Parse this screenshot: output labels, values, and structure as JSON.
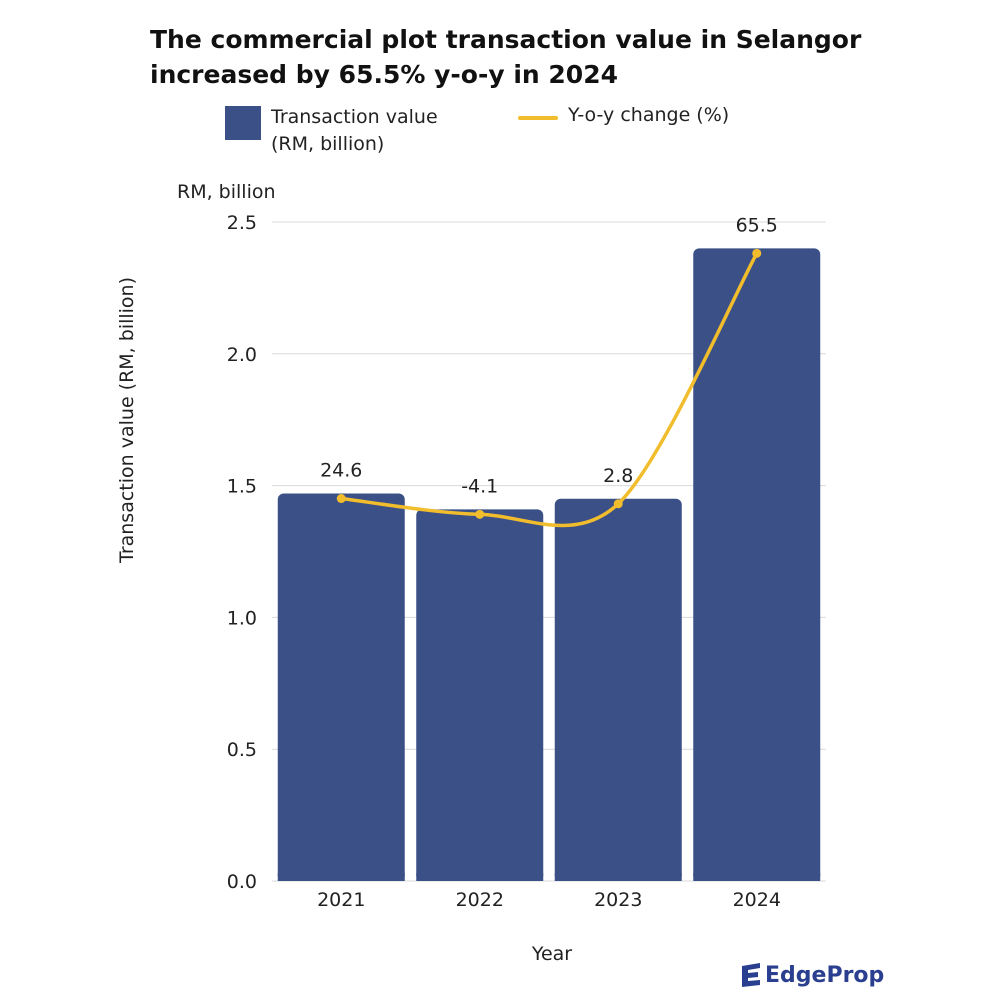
{
  "title_line1": "The  commercial plot transaction value in Selangor",
  "title_line2": "increased by 65.5% y-o-y in 2024",
  "legend": {
    "bar_label": "Transaction value\n(RM, billion)",
    "line_label": "Y-o-y change (%)"
  },
  "brand": "EdgeProp",
  "colors": {
    "bar": "#3b5087",
    "line": "#f2bd2c",
    "grid": "#d9d9d9",
    "brand": "#2a3f8f"
  },
  "chart_data": {
    "type": "bar",
    "unit_label": "RM, billion",
    "ylabel": "Transaction value (RM, billion)",
    "xlabel": "Year",
    "ylim": [
      0,
      2.5
    ],
    "yticks": [
      0.0,
      0.5,
      1.0,
      1.5,
      2.0,
      2.5
    ],
    "ytick_labels": [
      "0.0",
      "0.5",
      "1.0",
      "1.5",
      "2.0",
      "2.5"
    ],
    "grid": true,
    "legend_position": "top",
    "categories": [
      "2021",
      "2022",
      "2023",
      "2024"
    ],
    "series": [
      {
        "name": "Transaction value (RM, billion)",
        "type": "bar",
        "values": [
          1.47,
          1.41,
          1.45,
          2.4
        ]
      },
      {
        "name": "Y-o-y change (%)",
        "type": "line",
        "values": [
          24.6,
          -4.1,
          2.8,
          65.5
        ],
        "labels": [
          "24.6",
          "-4.1",
          "2.8",
          "65.5"
        ]
      }
    ]
  }
}
